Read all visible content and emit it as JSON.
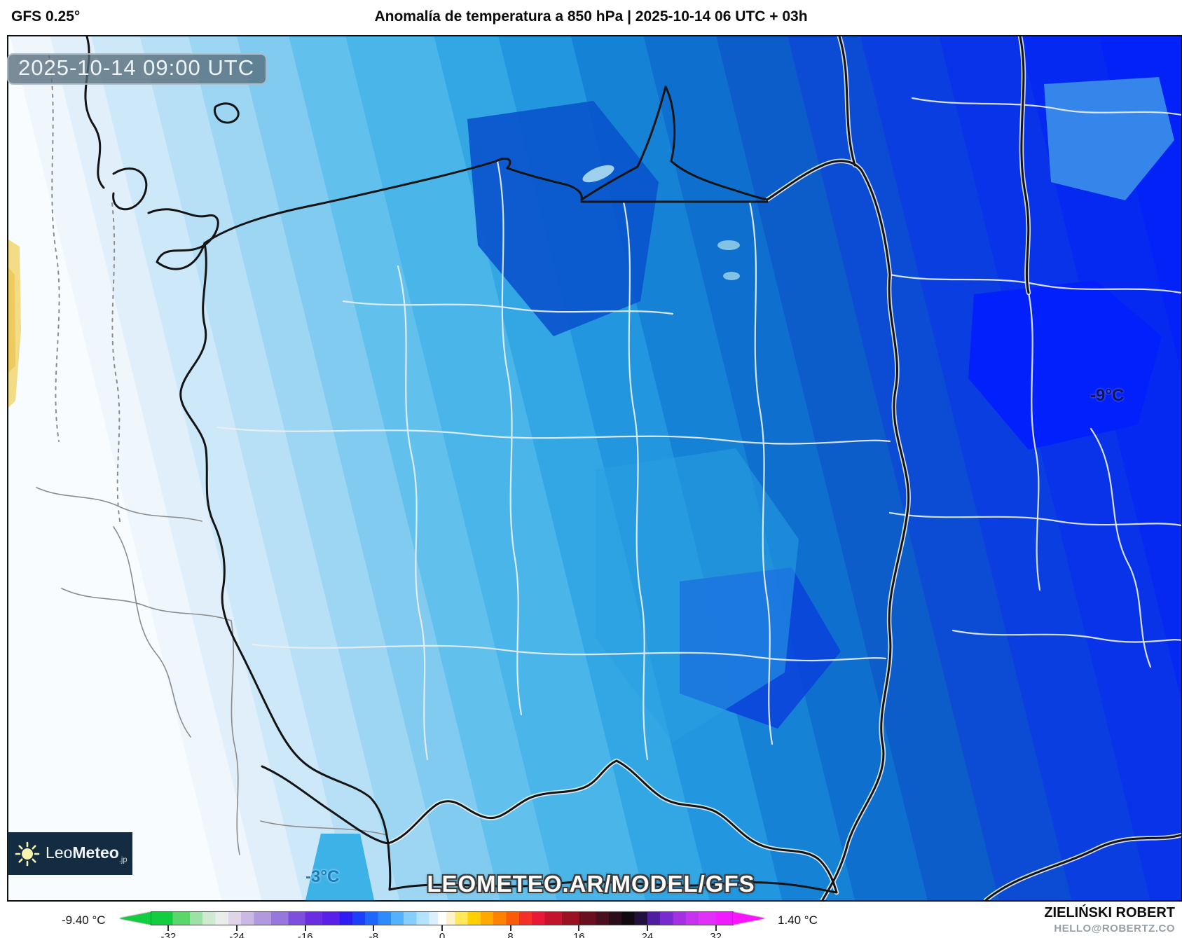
{
  "header": {
    "model_label": "GFS 0.25°",
    "title": "Anomalía de temperatura a 850 hPa | 2025-10-14 06 UTC + 03h"
  },
  "map": {
    "timestamp_badge": "2025-10-14 09:00 UTC",
    "watermark": "LEOMETEO.AR/MODEL/GFS",
    "point_labels": {
      "east": "-9°C",
      "center": "-3°C"
    },
    "logo": {
      "name_light": "Leo",
      "name_bold": "Meteo",
      "tld": ".jp"
    }
  },
  "colorbar": {
    "min_value_label": "-9.40 °C",
    "max_value_label": "1.40 °C",
    "range": [
      -34,
      34
    ],
    "arrow_left_color": "#12cd40",
    "arrow_right_color": "#fb14ff",
    "ticks": [
      {
        "value": -32,
        "label": "-32"
      },
      {
        "value": -24,
        "label": "-24"
      },
      {
        "value": -16,
        "label": "-16"
      },
      {
        "value": -8,
        "label": "-8"
      },
      {
        "value": 0,
        "label": "0"
      },
      {
        "value": 8,
        "label": "8"
      },
      {
        "value": 16,
        "label": "16"
      },
      {
        "value": 24,
        "label": "24"
      },
      {
        "value": 32,
        "label": "32"
      }
    ],
    "stops": [
      {
        "value": -34,
        "color": "#12cd40"
      },
      {
        "value": -31.5,
        "color": "#5ad66b"
      },
      {
        "value": -29.5,
        "color": "#9fe0a7"
      },
      {
        "value": -28,
        "color": "#cfead1"
      },
      {
        "value": -26.5,
        "color": "#e9eeea"
      },
      {
        "value": -25,
        "color": "#ded6e8"
      },
      {
        "value": -23.5,
        "color": "#cab9e3"
      },
      {
        "value": -22,
        "color": "#b199df"
      },
      {
        "value": -20,
        "color": "#9776de"
      },
      {
        "value": -18,
        "color": "#7c50dd"
      },
      {
        "value": -16,
        "color": "#6a2ddf"
      },
      {
        "value": -14,
        "color": "#5a20e7"
      },
      {
        "value": -12,
        "color": "#2d1df2"
      },
      {
        "value": -10.5,
        "color": "#1c40fa"
      },
      {
        "value": -9,
        "color": "#1d67ff"
      },
      {
        "value": -7.5,
        "color": "#2d8bff"
      },
      {
        "value": -6,
        "color": "#54b1fe"
      },
      {
        "value": -4.5,
        "color": "#85ceff"
      },
      {
        "value": -3,
        "color": "#b3e3ff"
      },
      {
        "value": -1.5,
        "color": "#daf0fe"
      },
      {
        "value": -0.5,
        "color": "#ffffff"
      },
      {
        "value": 0.5,
        "color": "#fcf2cc"
      },
      {
        "value": 1.5,
        "color": "#ffe85c"
      },
      {
        "value": 3,
        "color": "#ffcf00"
      },
      {
        "value": 4.5,
        "color": "#ffa900"
      },
      {
        "value": 6,
        "color": "#ff8200"
      },
      {
        "value": 7.5,
        "color": "#fa5b06"
      },
      {
        "value": 9,
        "color": "#f23029"
      },
      {
        "value": 10.5,
        "color": "#e81836"
      },
      {
        "value": 12,
        "color": "#c4142d"
      },
      {
        "value": 14,
        "color": "#9a1123"
      },
      {
        "value": 16,
        "color": "#6a0f1e"
      },
      {
        "value": 18,
        "color": "#480f1e"
      },
      {
        "value": 19.5,
        "color": "#2b0c19"
      },
      {
        "value": 21,
        "color": "#110910"
      },
      {
        "value": 22.5,
        "color": "#23113d"
      },
      {
        "value": 24,
        "color": "#4f1e9f"
      },
      {
        "value": 25.5,
        "color": "#792bd0"
      },
      {
        "value": 27,
        "color": "#a331e1"
      },
      {
        "value": 28.5,
        "color": "#c834ed"
      },
      {
        "value": 30,
        "color": "#e131f9"
      },
      {
        "value": 32,
        "color": "#f01bff"
      }
    ]
  },
  "credits": {
    "author": "ZIELIŃSKI ROBERT",
    "contact": "HELLO@ROBERTZ.CO"
  }
}
